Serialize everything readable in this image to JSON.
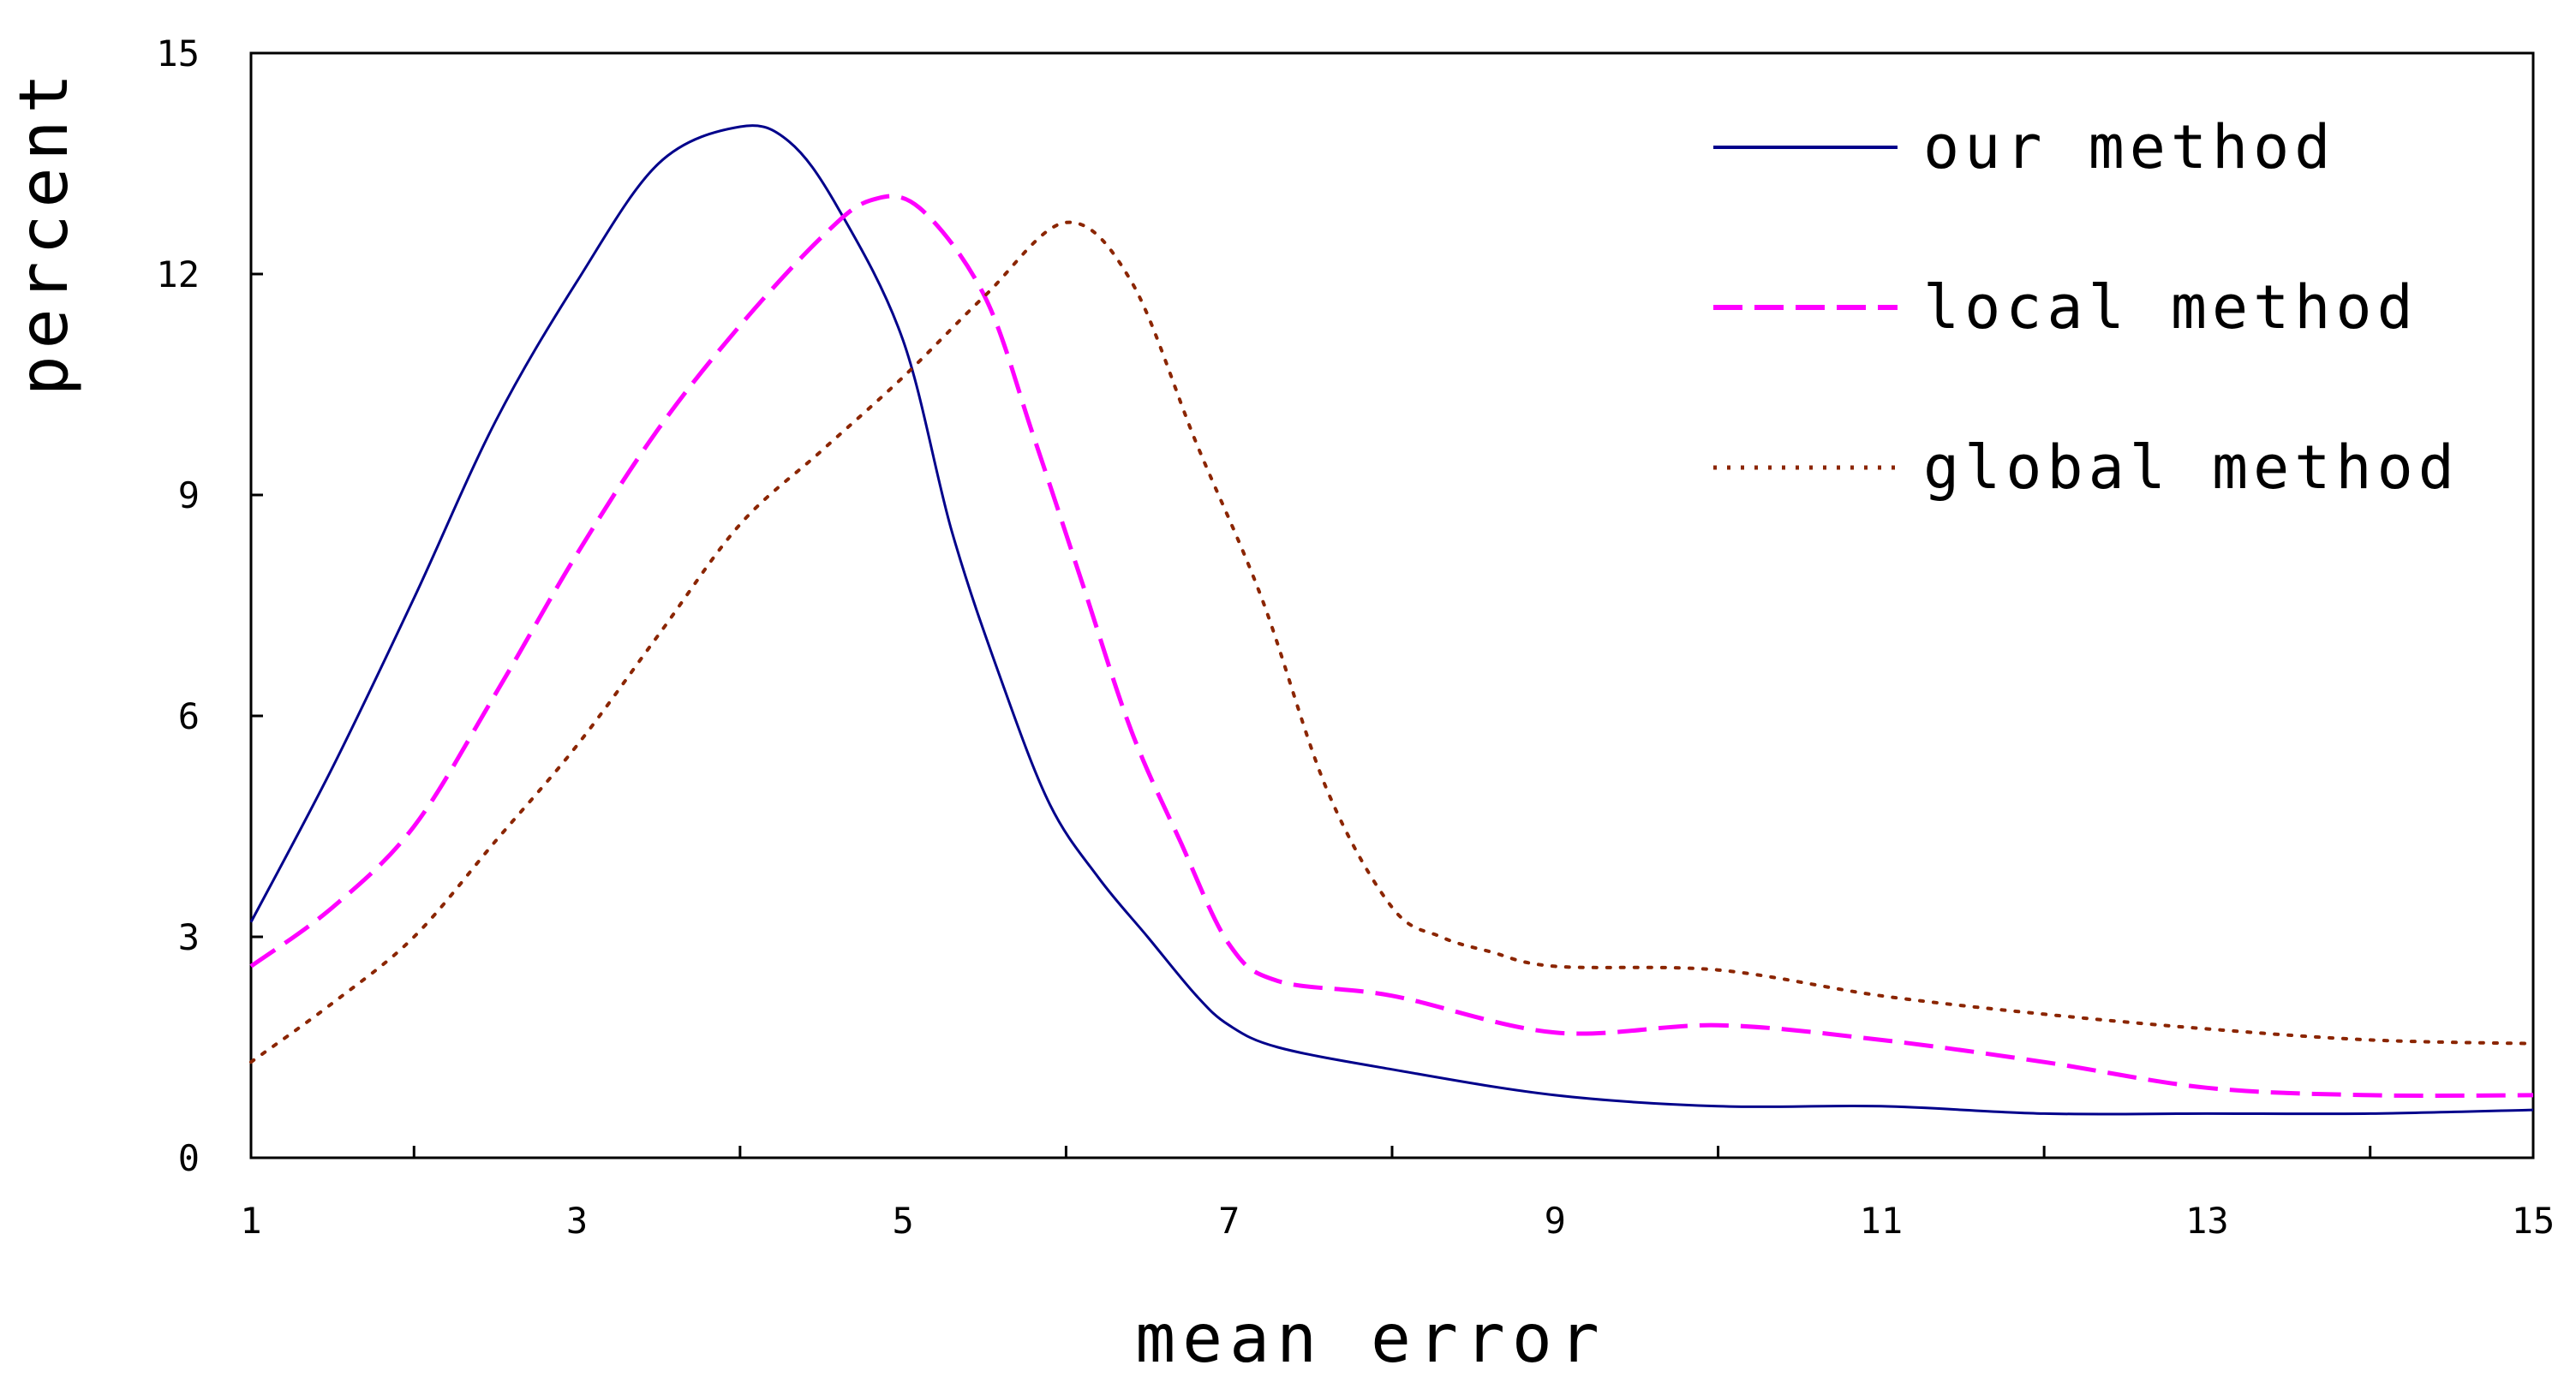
{
  "chart_data": {
    "type": "line",
    "title": "",
    "xlabel": "mean error",
    "ylabel": "percent",
    "xlim": [
      1,
      15
    ],
    "ylim": [
      0,
      15
    ],
    "x_ticks": [
      1,
      3,
      5,
      7,
      9,
      11,
      13,
      15
    ],
    "y_ticks": [
      0,
      3,
      6,
      9,
      12,
      15
    ],
    "legend_position": "top-right",
    "series": [
      {
        "name": "our method",
        "style": "solid",
        "color": "#00008B",
        "x": [
          1,
          1.5,
          2,
          2.5,
          3,
          3.5,
          4,
          4.3,
          4.6,
          5,
          5.3,
          5.6,
          5.9,
          6.2,
          6.5,
          6.8,
          7,
          7.3,
          8,
          9,
          10,
          11,
          12,
          13,
          14,
          15
        ],
        "y": [
          3.2,
          5.3,
          7.6,
          10.0,
          11.9,
          13.5,
          14.0,
          13.8,
          12.9,
          11.1,
          8.5,
          6.5,
          4.8,
          3.8,
          3.0,
          2.2,
          1.8,
          1.5,
          1.2,
          0.85,
          0.7,
          0.7,
          0.6,
          0.6,
          0.6,
          0.65
        ]
      },
      {
        "name": "local method",
        "style": "dashed",
        "color": "#FF00FF",
        "x": [
          1,
          1.5,
          2,
          2.5,
          3,
          3.5,
          4,
          4.5,
          4.8,
          5.1,
          5.5,
          5.8,
          6.1,
          6.4,
          6.7,
          7,
          7.3,
          8,
          9,
          10,
          11,
          12,
          13,
          14,
          15
        ],
        "y": [
          2.6,
          3.4,
          4.5,
          6.3,
          8.2,
          9.9,
          11.3,
          12.5,
          13.0,
          12.9,
          11.7,
          9.8,
          7.8,
          5.8,
          4.3,
          2.9,
          2.4,
          2.2,
          1.7,
          1.8,
          1.6,
          1.3,
          0.95,
          0.85,
          0.85
        ]
      },
      {
        "name": "global method",
        "style": "dotted",
        "color": "#8B2500",
        "x": [
          1,
          1.5,
          2,
          2.5,
          3,
          3.5,
          4,
          4.5,
          5,
          5.5,
          6,
          6.4,
          6.8,
          7.2,
          7.6,
          8,
          8.3,
          8.6,
          9,
          10,
          11,
          12,
          13,
          14,
          15
        ],
        "y": [
          1.3,
          2.1,
          3.0,
          4.3,
          5.6,
          7.1,
          8.6,
          9.6,
          10.6,
          11.7,
          12.7,
          11.9,
          9.7,
          7.6,
          5.0,
          3.4,
          3.0,
          2.8,
          2.6,
          2.55,
          2.2,
          1.95,
          1.75,
          1.6,
          1.55
        ]
      }
    ]
  }
}
